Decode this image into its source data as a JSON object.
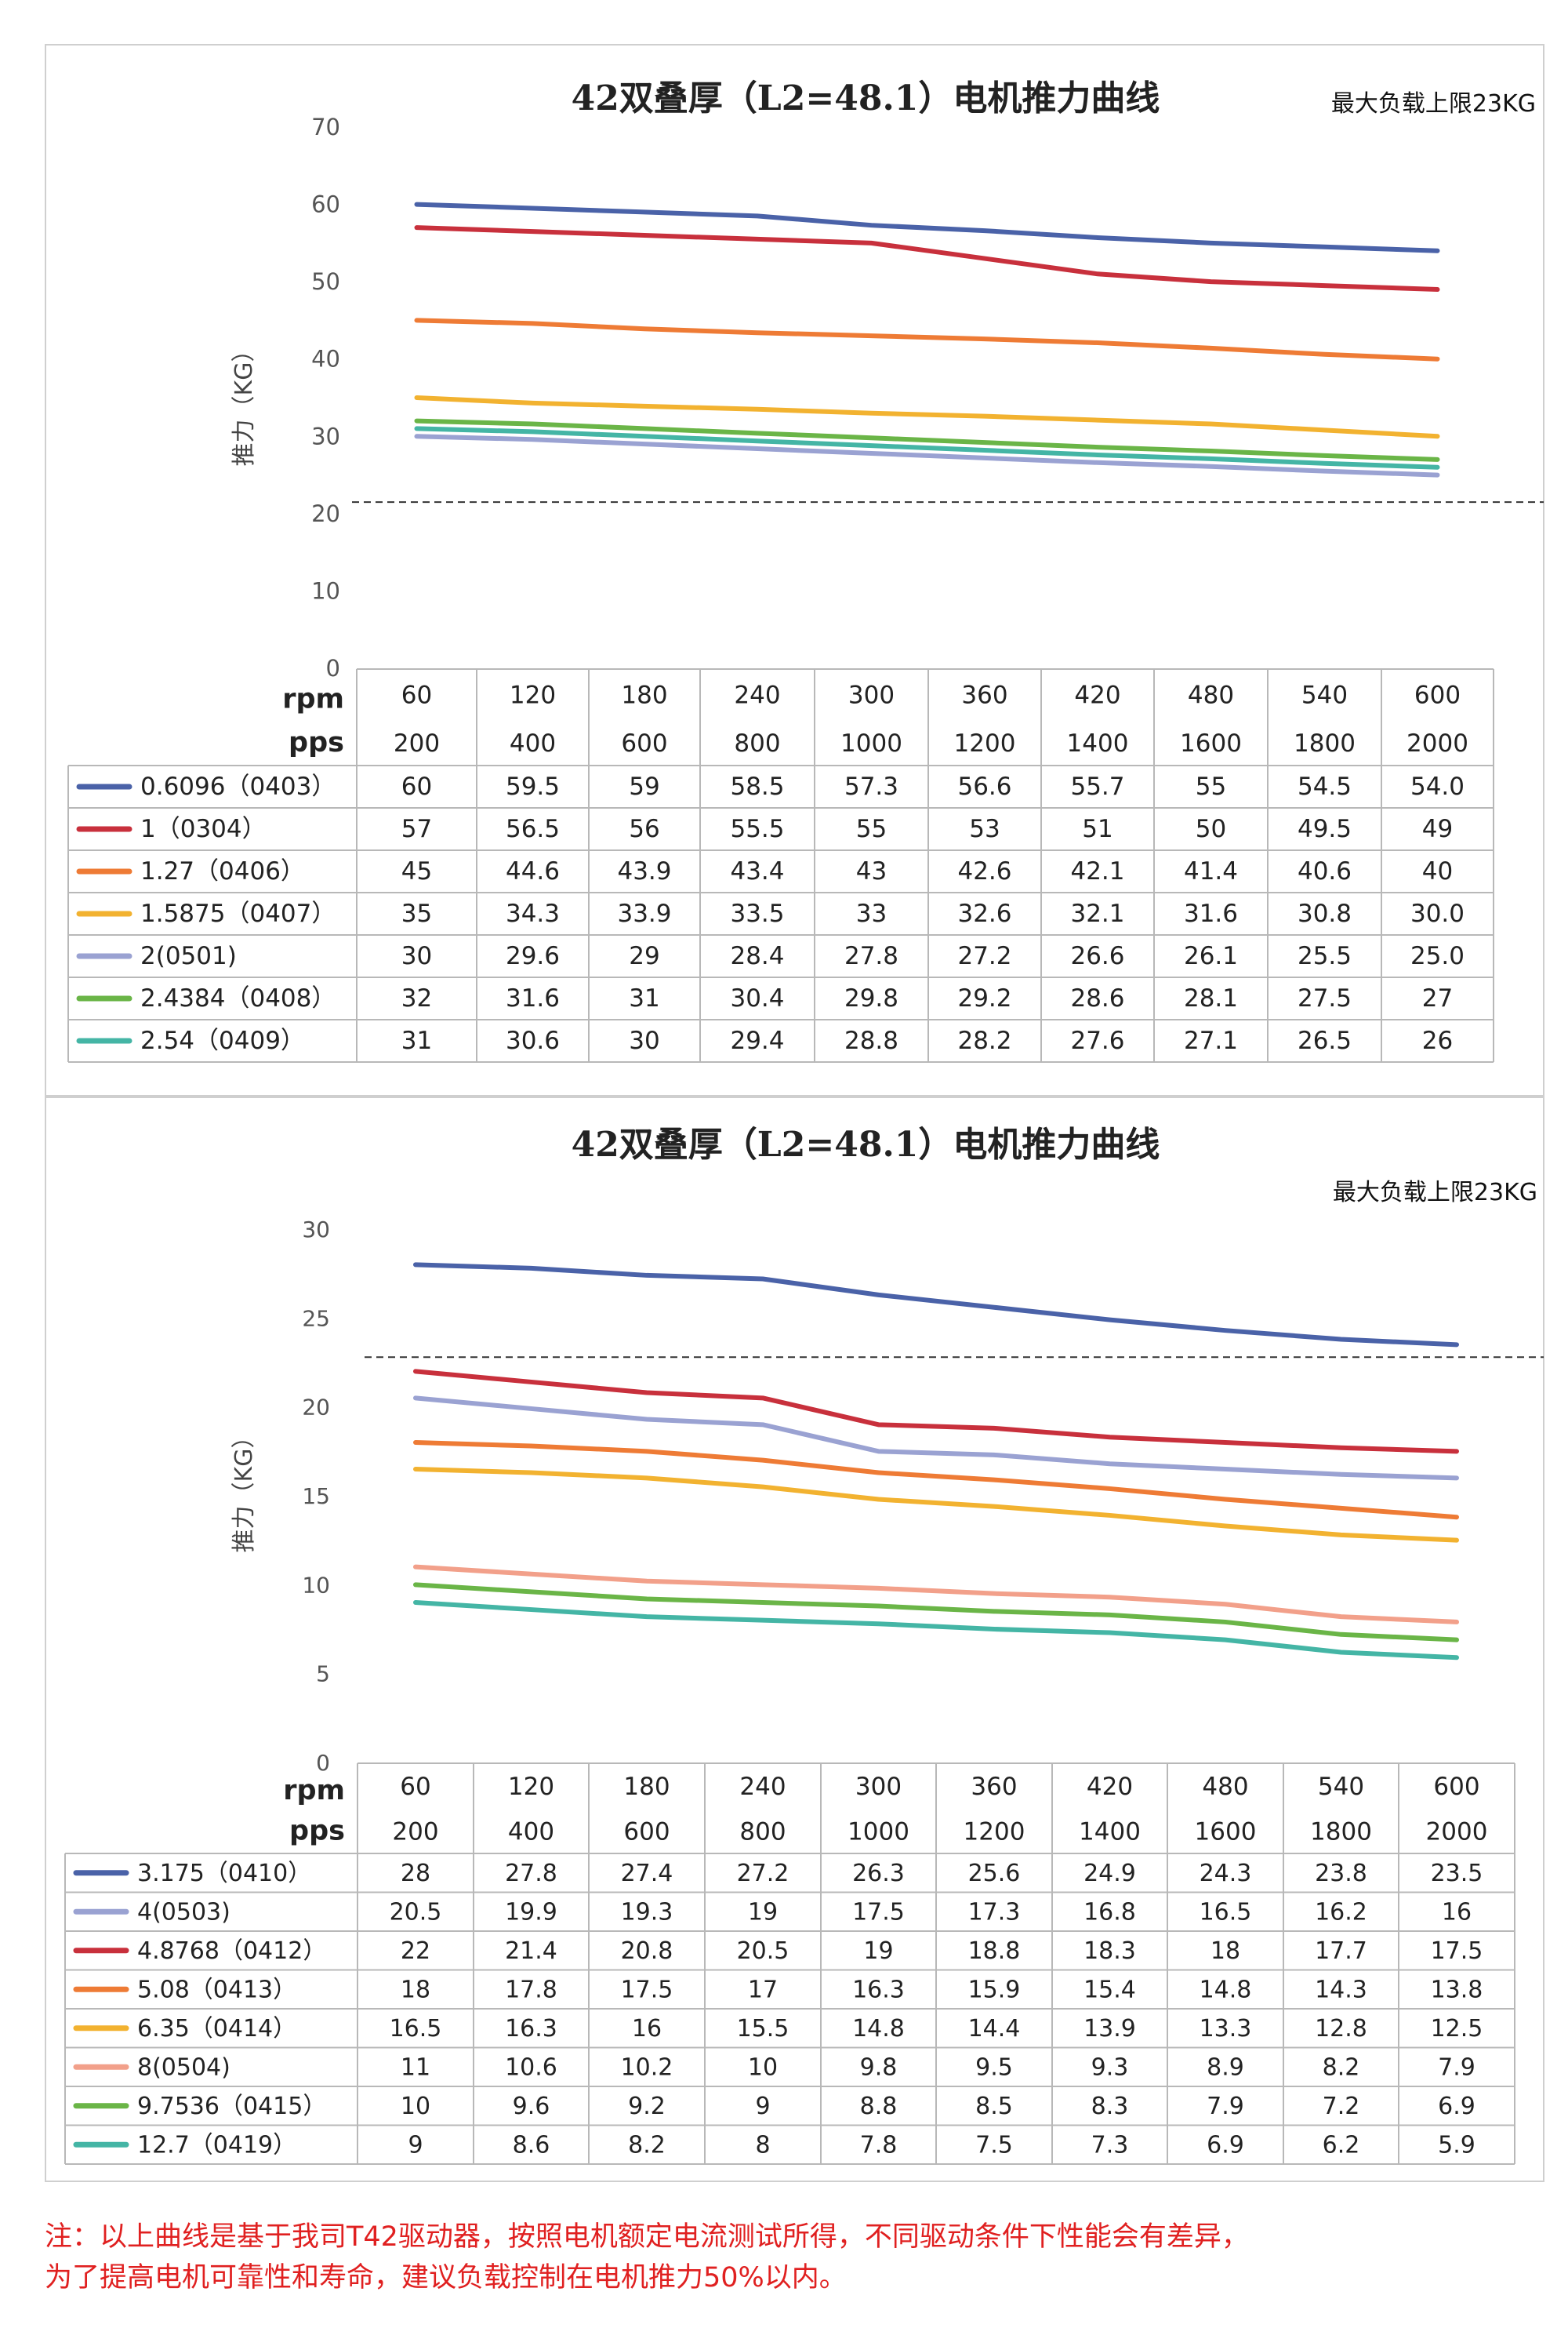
{
  "chart_data": [
    {
      "type": "line",
      "title": "42双叠厚（L2=48.1）电机推力曲线",
      "note": "最大负载上限23KG",
      "ylabel": "推力（KG）",
      "ylim": [
        0,
        70
      ],
      "yticks": [
        0,
        10,
        20,
        30,
        40,
        50,
        60,
        70
      ],
      "reference_line": 21.5,
      "grid": false,
      "legend": "table-below",
      "row_labels": [
        "rpm",
        "pps"
      ],
      "rpm": [
        "60",
        "120",
        "180",
        "240",
        "300",
        "360",
        "420",
        "480",
        "540",
        "600"
      ],
      "pps": [
        "200",
        "400",
        "600",
        "800",
        "1000",
        "1200",
        "1400",
        "1600",
        "1800",
        "2000"
      ],
      "series": [
        {
          "name": "0.6096（0403）",
          "color": "#4a62a8",
          "values": [
            60,
            59.5,
            59,
            58.5,
            57.3,
            56.6,
            55.7,
            55,
            54.5,
            54.0
          ],
          "labels": [
            "60",
            "59.5",
            "59",
            "58.5",
            "57.3",
            "56.6",
            "55.7",
            "55",
            "54.5",
            "54.0"
          ]
        },
        {
          "name": "1（0304）",
          "color": "#c8303c",
          "values": [
            57,
            56.5,
            56,
            55.5,
            55,
            53,
            51,
            50,
            49.5,
            49
          ],
          "labels": [
            "57",
            "56.5",
            "56",
            "55.5",
            "55",
            "53",
            "51",
            "50",
            "49.5",
            "49"
          ]
        },
        {
          "name": "1.27（0406）",
          "color": "#ee7b35",
          "values": [
            45,
            44.6,
            43.9,
            43.4,
            43,
            42.6,
            42.1,
            41.4,
            40.6,
            40
          ],
          "labels": [
            "45",
            "44.6",
            "43.9",
            "43.4",
            "43",
            "42.6",
            "42.1",
            "41.4",
            "40.6",
            "40"
          ]
        },
        {
          "name": "1.5875（0407）",
          "color": "#f2b230",
          "values": [
            35,
            34.3,
            33.9,
            33.5,
            33,
            32.6,
            32.1,
            31.6,
            30.8,
            30.0
          ],
          "labels": [
            "35",
            "34.3",
            "33.9",
            "33.5",
            "33",
            "32.6",
            "32.1",
            "31.6",
            "30.8",
            "30.0"
          ]
        },
        {
          "name": "2(0501)",
          "color": "#9aa2d2",
          "values": [
            30,
            29.6,
            29,
            28.4,
            27.8,
            27.2,
            26.6,
            26.1,
            25.5,
            25.0
          ],
          "labels": [
            "30",
            "29.6",
            "29",
            "28.4",
            "27.8",
            "27.2",
            "26.6",
            "26.1",
            "25.5",
            "25.0"
          ]
        },
        {
          "name": "2.4384（0408）",
          "color": "#6ab547",
          "values": [
            32,
            31.6,
            31,
            30.4,
            29.8,
            29.2,
            28.6,
            28.1,
            27.5,
            27
          ],
          "labels": [
            "32",
            "31.6",
            "31",
            "30.4",
            "29.8",
            "29.2",
            "28.6",
            "28.1",
            "27.5",
            "27"
          ]
        },
        {
          "name": "2.54（0409）",
          "color": "#44b5a5",
          "values": [
            31,
            30.6,
            30,
            29.4,
            28.8,
            28.2,
            27.6,
            27.1,
            26.5,
            26
          ],
          "labels": [
            "31",
            "30.6",
            "30",
            "29.4",
            "28.8",
            "28.2",
            "27.6",
            "27.1",
            "26.5",
            "26"
          ]
        }
      ]
    },
    {
      "type": "line",
      "title": "42双叠厚（L2=48.1）电机推力曲线",
      "note": "最大负载上限23KG",
      "ylabel": "推力（KG）",
      "ylim": [
        0,
        30
      ],
      "yticks": [
        0,
        5,
        10,
        15,
        20,
        25,
        30
      ],
      "reference_line": 22.8,
      "grid": false,
      "legend": "table-below",
      "row_labels": [
        "rpm",
        "pps"
      ],
      "rpm": [
        "60",
        "120",
        "180",
        "240",
        "300",
        "360",
        "420",
        "480",
        "540",
        "600"
      ],
      "pps": [
        "200",
        "400",
        "600",
        "800",
        "1000",
        "1200",
        "1400",
        "1600",
        "1800",
        "2000"
      ],
      "series": [
        {
          "name": "3.175（0410）",
          "color": "#4a62a8",
          "values": [
            28,
            27.8,
            27.4,
            27.2,
            26.3,
            25.6,
            24.9,
            24.3,
            23.8,
            23.5
          ],
          "labels": [
            "28",
            "27.8",
            "27.4",
            "27.2",
            "26.3",
            "25.6",
            "24.9",
            "24.3",
            "23.8",
            "23.5"
          ]
        },
        {
          "name": "4(0503)",
          "color": "#9aa2d2",
          "values": [
            20.5,
            19.9,
            19.3,
            19,
            17.5,
            17.3,
            16.8,
            16.5,
            16.2,
            16
          ],
          "labels": [
            "20.5",
            "19.9",
            "19.3",
            "19",
            "17.5",
            "17.3",
            "16.8",
            "16.5",
            "16.2",
            "16"
          ]
        },
        {
          "name": "4.8768（0412）",
          "color": "#c8303c",
          "values": [
            22,
            21.4,
            20.8,
            20.5,
            19,
            18.8,
            18.3,
            18,
            17.7,
            17.5
          ],
          "labels": [
            "22",
            "21.4",
            "20.8",
            "20.5",
            "19",
            "18.8",
            "18.3",
            "18",
            "17.7",
            "17.5"
          ]
        },
        {
          "name": "5.08（0413）",
          "color": "#ee7b35",
          "values": [
            18,
            17.8,
            17.5,
            17,
            16.3,
            15.9,
            15.4,
            14.8,
            14.3,
            13.8
          ],
          "labels": [
            "18",
            "17.8",
            "17.5",
            "17",
            "16.3",
            "15.9",
            "15.4",
            "14.8",
            "14.3",
            "13.8"
          ]
        },
        {
          "name": "6.35（0414）",
          "color": "#f2b230",
          "values": [
            16.5,
            16.3,
            16,
            15.5,
            14.8,
            14.4,
            13.9,
            13.3,
            12.8,
            12.5
          ],
          "labels": [
            "16.5",
            "16.3",
            "16",
            "15.5",
            "14.8",
            "14.4",
            "13.9",
            "13.3",
            "12.8",
            "12.5"
          ]
        },
        {
          "name": "8(0504)",
          "color": "#f2a08a",
          "values": [
            11,
            10.6,
            10.2,
            10,
            9.8,
            9.5,
            9.3,
            8.9,
            8.2,
            7.9
          ],
          "labels": [
            "11",
            "10.6",
            "10.2",
            "10",
            "9.8",
            "9.5",
            "9.3",
            "8.9",
            "8.2",
            "7.9"
          ]
        },
        {
          "name": "9.7536（0415）",
          "color": "#6ab547",
          "values": [
            10,
            9.6,
            9.2,
            9,
            8.8,
            8.5,
            8.3,
            7.9,
            7.2,
            6.9
          ],
          "labels": [
            "10",
            "9.6",
            "9.2",
            "9",
            "8.8",
            "8.5",
            "8.3",
            "7.9",
            "7.2",
            "6.9"
          ]
        },
        {
          "name": "12.7（0419）",
          "color": "#44b5a5",
          "values": [
            9,
            8.6,
            8.2,
            8,
            7.8,
            7.5,
            7.3,
            6.9,
            6.2,
            5.9
          ],
          "labels": [
            "9",
            "8.6",
            "8.2",
            "8",
            "7.8",
            "7.5",
            "7.3",
            "6.9",
            "6.2",
            "5.9"
          ]
        }
      ]
    }
  ],
  "footer": {
    "line1": "注：以上曲线是基于我司T42驱动器，按照电机额定电流测试所得，不同驱动条件下性能会有差异，",
    "line2": "为了提高电机可靠性和寿命，建议负载控制在电机推力50%以内。"
  }
}
